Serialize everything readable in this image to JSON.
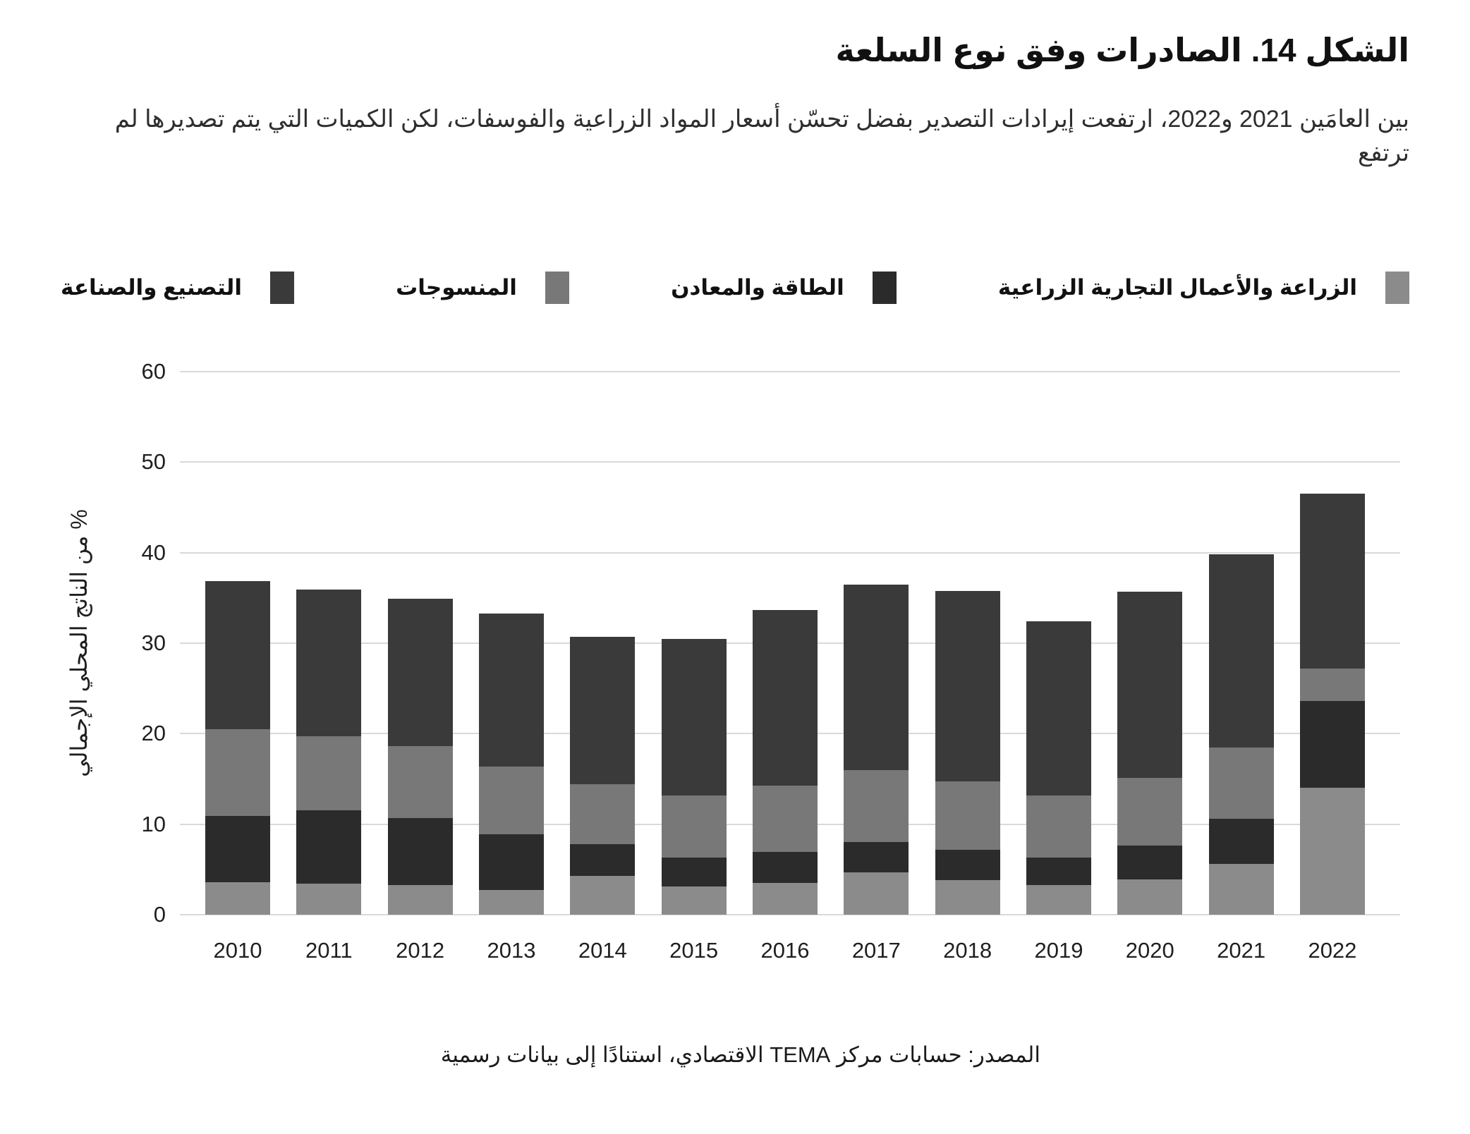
{
  "colors": {
    "background": "#ffffff",
    "grid": "#d9d9d9",
    "text": "#1f1f1f"
  },
  "chart_data": {
    "type": "bar",
    "stacked": true,
    "rtl": true,
    "title": "الشكل 14. الصادرات وفق نوع السلعة",
    "subtitle": "بين العامَين 2021 و2022، ارتفعت إيرادات التصدير بفضل تحسّن أسعار المواد الزراعية والفوسفات، لكن الكميات التي يتم تصديرها لم ترتفع",
    "source_note": "المصدر: حسابات مركز TEMA الاقتصادي، استنادًا إلى بيانات رسمية",
    "xlabel": "",
    "ylabel": "% من الناتج المحلي الإجمالي",
    "ylim": [
      0,
      60
    ],
    "ytick_step": 10,
    "grid": true,
    "legend_position": "top",
    "categories": [
      "2010",
      "2011",
      "2012",
      "2013",
      "2014",
      "2015",
      "2016",
      "2017",
      "2018",
      "2019",
      "2020",
      "2021",
      "2022"
    ],
    "series": [
      {
        "key": "agriculture-agribusiness",
        "name": "الزراعة والأعمال التجارية الزراعية",
        "color": "#8b8b8b",
        "values": [
          3.6,
          3.4,
          3.3,
          2.7,
          4.3,
          3.1,
          3.5,
          4.7,
          3.8,
          3.3,
          3.9,
          5.6,
          14.0
        ]
      },
      {
        "key": "energy-minerals",
        "name": "الطاقة والمعادن",
        "color": "#2b2b2b",
        "values": [
          7.3,
          8.1,
          7.4,
          6.2,
          3.5,
          3.2,
          3.4,
          3.3,
          3.4,
          3.0,
          3.7,
          5.0,
          9.6
        ]
      },
      {
        "key": "textiles",
        "name": "المنسوجات",
        "color": "#787878",
        "values": [
          9.6,
          8.2,
          7.9,
          7.5,
          6.6,
          6.9,
          7.4,
          8.0,
          7.5,
          6.9,
          7.5,
          7.9,
          3.6
        ]
      },
      {
        "key": "manufacturing-industry",
        "name": "التصنيع والصناعة",
        "color": "#3a3a3a",
        "values": [
          16.4,
          16.2,
          16.3,
          16.9,
          16.3,
          17.3,
          19.4,
          20.5,
          21.1,
          19.2,
          20.6,
          21.3,
          19.3
        ]
      }
    ]
  }
}
